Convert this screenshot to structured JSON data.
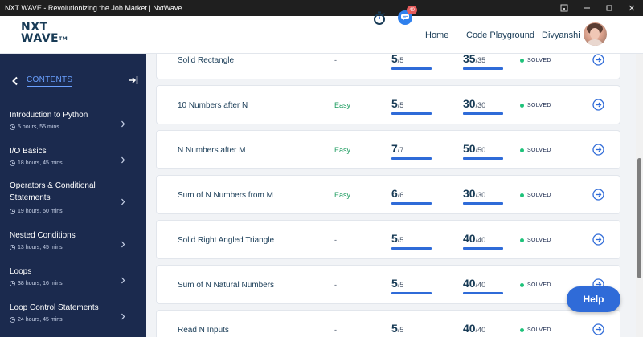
{
  "window": {
    "title": "NXT WAVE - Revolutionizing the Job Market | NxtWave"
  },
  "header": {
    "logo_line1": "NXT",
    "logo_line2": "WAVE",
    "logo_tm": "TM",
    "notification_count": "40",
    "nav": {
      "home": "Home",
      "code_playground": "Code Playground"
    },
    "username": "Divyanshi"
  },
  "sidebar": {
    "title": "CONTENTS",
    "items": [
      {
        "label": "Introduction to Python",
        "duration": "5 hours, 55 mins"
      },
      {
        "label": "I/O Basics",
        "duration": "18 hours, 45 mins"
      },
      {
        "label": "Operators & Conditional Statements",
        "duration": "19 hours, 50 mins"
      },
      {
        "label": "Nested Conditions",
        "duration": "13 hours, 45 mins"
      },
      {
        "label": "Loops",
        "duration": "38 hours, 16 mins"
      },
      {
        "label": "Loop Control Statements",
        "duration": "24 hours, 45 mins"
      }
    ]
  },
  "problems": [
    {
      "name": "Solid Rectangle",
      "difficulty": "-",
      "score": "5",
      "score_total": "/5",
      "points": "35",
      "points_total": "/35",
      "status": "SOLVED"
    },
    {
      "name": "10 Numbers after N",
      "difficulty": "Easy",
      "score": "5",
      "score_total": "/5",
      "points": "30",
      "points_total": "/30",
      "status": "SOLVED"
    },
    {
      "name": "N Numbers after M",
      "difficulty": "Easy",
      "score": "7",
      "score_total": "/7",
      "points": "50",
      "points_total": "/50",
      "status": "SOLVED"
    },
    {
      "name": "Sum of N Numbers from M",
      "difficulty": "Easy",
      "score": "6",
      "score_total": "/6",
      "points": "30",
      "points_total": "/30",
      "status": "SOLVED"
    },
    {
      "name": "Solid Right Angled Triangle",
      "difficulty": "-",
      "score": "5",
      "score_total": "/5",
      "points": "40",
      "points_total": "/40",
      "status": "SOLVED"
    },
    {
      "name": "Sum of N Natural Numbers",
      "difficulty": "-",
      "score": "5",
      "score_total": "/5",
      "points": "40",
      "points_total": "/40",
      "status": "SOLVED"
    },
    {
      "name": "Read N Inputs",
      "difficulty": "-",
      "score": "5",
      "score_total": "/5",
      "points": "40",
      "points_total": "/40",
      "status": "SOLVED"
    }
  ],
  "help": {
    "label": "Help"
  },
  "colors": {
    "sidebar_bg": "#1b2a4e",
    "accent": "#2f6bd8",
    "easy": "#1b9b5e",
    "solved_dot": "#1ec27a"
  }
}
